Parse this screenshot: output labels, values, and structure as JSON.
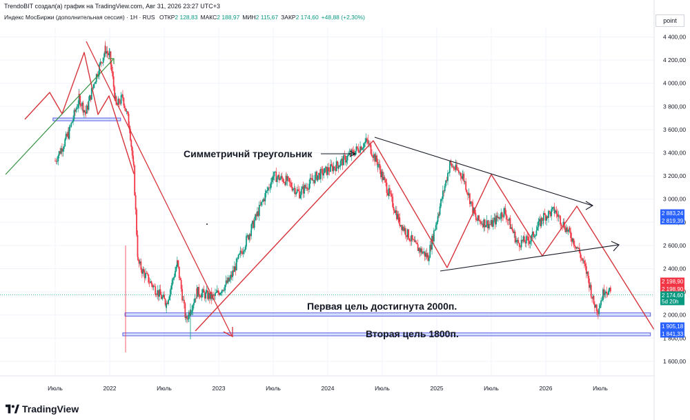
{
  "header": {
    "credit": "TrendoBIT создал(а) график на TradingView.com, Авг 31, 2026 23:27 UTC+3",
    "instrument": "Индекс МосБиржи (дополнительная сессия) · 1Н · RUS",
    "ohlc": [
      {
        "label": "ОТКР",
        "value": "2 128,83"
      },
      {
        "label": "МАКС",
        "value": "2 188,97"
      },
      {
        "label": "МИН",
        "value": "2 115,67"
      },
      {
        "label": "ЗАКР",
        "value": "2 174,60"
      },
      {
        "label": "",
        "value": "+48,88 (+2,30%)"
      }
    ],
    "unit": "point"
  },
  "logo": {
    "text": "TradingView"
  },
  "chart_data": {
    "type": "candlestick",
    "x_ticks": [
      "Июль",
      "2022",
      "Июль",
      "2023",
      "Июль",
      "2024",
      "Июль",
      "2025",
      "Июль",
      "2026",
      "Июль"
    ],
    "y_ticks": [
      "4 400,00",
      "4 200,00",
      "4 000,00",
      "3 800,00",
      "3 600,00",
      "3 400,00",
      "3 200,00",
      "3 000,00",
      "2 800,00",
      "2 600,00",
      "2 400,00",
      "2 200,00",
      "2 000,00",
      "1 800,00",
      "1 600,00"
    ],
    "ylim": [
      1460,
      4460
    ],
    "price_path": [
      [
        2021.5,
        3330
      ],
      [
        2021.62,
        3560
      ],
      [
        2021.72,
        3870
      ],
      [
        2021.78,
        3740
      ],
      [
        2021.86,
        4020
      ],
      [
        2021.96,
        4290
      ],
      [
        2022.0,
        4230
      ],
      [
        2022.06,
        3800
      ],
      [
        2022.12,
        3880
      ],
      [
        2022.18,
        3640
      ],
      [
        2022.22,
        3250
      ],
      [
        2022.26,
        2450
      ],
      [
        2022.32,
        2350
      ],
      [
        2022.42,
        2220
      ],
      [
        2022.52,
        2100
      ],
      [
        2022.62,
        2450
      ],
      [
        2022.7,
        1950
      ],
      [
        2022.8,
        2200
      ],
      [
        2022.95,
        2150
      ],
      [
        2023.1,
        2300
      ],
      [
        2023.3,
        2750
      ],
      [
        2023.5,
        3200
      ],
      [
        2023.62,
        3160
      ],
      [
        2023.74,
        3050
      ],
      [
        2023.9,
        3200
      ],
      [
        2024.1,
        3300
      ],
      [
        2024.36,
        3500
      ],
      [
        2024.46,
        3300
      ],
      [
        2024.56,
        3050
      ],
      [
        2024.66,
        2800
      ],
      [
        2024.8,
        2600
      ],
      [
        2024.92,
        2500
      ],
      [
        2025.02,
        2900
      ],
      [
        2025.12,
        3300
      ],
      [
        2025.24,
        3200
      ],
      [
        2025.36,
        2820
      ],
      [
        2025.5,
        2780
      ],
      [
        2025.62,
        2900
      ],
      [
        2025.74,
        2620
      ],
      [
        2025.86,
        2650
      ],
      [
        2025.98,
        2850
      ],
      [
        2026.08,
        2900
      ],
      [
        2026.22,
        2700
      ],
      [
        2026.3,
        2560
      ],
      [
        2026.38,
        2350
      ],
      [
        2026.44,
        2100
      ],
      [
        2026.48,
        2050
      ],
      [
        2026.54,
        2230
      ],
      [
        2026.6,
        2180
      ]
    ],
    "price_labels": [
      {
        "value": 2883.24,
        "text": "2 883,24",
        "color": "#2962ff"
      },
      {
        "value": 2819.39,
        "text": "2 819,39",
        "color": "#2962ff"
      },
      {
        "value": 2198.9,
        "text": "2 198,90",
        "color": "#f23645"
      },
      {
        "value": 2198.9,
        "text": "2 198,90",
        "color": "#f23645"
      },
      {
        "value": 2174.6,
        "text": "2 174,60",
        "color": "#089981"
      },
      {
        "value": 2174.6,
        "text": "5d 20h",
        "color": "#089981"
      },
      {
        "value": 1905.18,
        "text": "1 905,18",
        "color": "#2962ff"
      },
      {
        "value": 1841.33,
        "text": "1 841,33",
        "color": "#2962ff"
      }
    ],
    "zones": [
      {
        "x0": 2021.48,
        "x1": 2022.1,
        "y0": 3680,
        "y1": 3700
      },
      {
        "x0": 2022.14,
        "x1": 2026.96,
        "y0": 1990,
        "y1": 2018
      },
      {
        "x0": 2022.12,
        "x1": 2026.96,
        "y0": 1820,
        "y1": 1845
      }
    ],
    "annotations": [
      {
        "text": "Симметричнй треугольник",
        "x": 2023.55,
        "y": 3400
      },
      {
        "text": "Первая цель достигнута 2000п.",
        "x": 2024.2,
        "y": 2090
      },
      {
        "text": "Вторая цель 1800п.",
        "x": 2024.3,
        "y": 1880
      }
    ]
  }
}
